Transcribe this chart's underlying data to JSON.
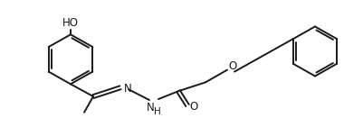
{
  "bg_color": "#ffffff",
  "line_color": "#1a1a1a",
  "line_width": 1.4,
  "text_color": "#1a1a1a",
  "font_size": 8.5,
  "figsize": [
    4.02,
    1.31
  ],
  "dpi": 100,
  "xlim": [
    0,
    402
  ],
  "ylim": [
    0,
    131
  ]
}
